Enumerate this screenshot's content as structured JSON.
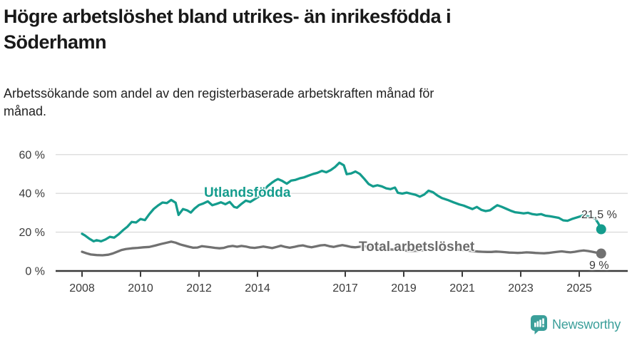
{
  "header": {
    "title": "Högre arbetslöshet bland utrikes- än inrikesfödda i Söderhamn",
    "subtitle": "Arbetssökande som andel av den registerbaserade arbetskraften månad för månad."
  },
  "chart_data": {
    "type": "line",
    "title": "Högre arbetslöshet bland utrikes- än inrikesfödda i Söderhamn",
    "grid": true,
    "legend_position": "inline-on-plot",
    "x_axis": {
      "ticks": [
        2008,
        2010,
        2012,
        2014,
        2017,
        2019,
        2021,
        2023,
        2025
      ],
      "tick_labels": [
        "2008",
        "2010",
        "2012",
        "2014",
        "2017",
        "2019",
        "2021",
        "2023",
        "2025"
      ],
      "range": [
        2007.1,
        2026.7
      ]
    },
    "y_axis": {
      "unit": "%",
      "ticks": [
        0,
        20,
        40,
        60
      ],
      "tick_labels": [
        "0 %",
        "20 %",
        "40 %",
        "60 %"
      ],
      "range": [
        0,
        60
      ]
    },
    "series": [
      {
        "name": "Utlandsfödda",
        "color": "#149c8d",
        "label_color": "#149c8d",
        "end_label": "21,5 %",
        "end_value": 21.5,
        "points": [
          [
            2008.0,
            19.2
          ],
          [
            2008.1,
            18.3
          ],
          [
            2008.25,
            16.6
          ],
          [
            2008.4,
            15.3
          ],
          [
            2008.5,
            15.9
          ],
          [
            2008.65,
            15.3
          ],
          [
            2008.8,
            16.2
          ],
          [
            2008.95,
            17.6
          ],
          [
            2009.1,
            17.2
          ],
          [
            2009.25,
            18.9
          ],
          [
            2009.4,
            21.0
          ],
          [
            2009.55,
            22.8
          ],
          [
            2009.7,
            25.3
          ],
          [
            2009.85,
            25.0
          ],
          [
            2010.0,
            26.8
          ],
          [
            2010.15,
            26.2
          ],
          [
            2010.3,
            29.3
          ],
          [
            2010.45,
            32.0
          ],
          [
            2010.6,
            33.8
          ],
          [
            2010.75,
            35.3
          ],
          [
            2010.9,
            35.0
          ],
          [
            2011.05,
            36.6
          ],
          [
            2011.2,
            35.2
          ],
          [
            2011.3,
            28.9
          ],
          [
            2011.45,
            31.9
          ],
          [
            2011.6,
            31.2
          ],
          [
            2011.72,
            30.1
          ],
          [
            2011.85,
            32.2
          ],
          [
            2012.0,
            34.0
          ],
          [
            2012.15,
            34.8
          ],
          [
            2012.3,
            35.9
          ],
          [
            2012.45,
            33.9
          ],
          [
            2012.6,
            34.6
          ],
          [
            2012.75,
            35.4
          ],
          [
            2012.9,
            34.4
          ],
          [
            2013.05,
            35.6
          ],
          [
            2013.2,
            33.0
          ],
          [
            2013.3,
            32.6
          ],
          [
            2013.45,
            34.6
          ],
          [
            2013.6,
            36.3
          ],
          [
            2013.75,
            35.6
          ],
          [
            2013.9,
            37.0
          ],
          [
            2014.05,
            38.4
          ],
          [
            2014.2,
            41.2
          ],
          [
            2014.35,
            43.8
          ],
          [
            2014.5,
            45.6
          ],
          [
            2014.6,
            46.6
          ],
          [
            2014.7,
            47.4
          ],
          [
            2014.85,
            46.4
          ],
          [
            2015.0,
            45.0
          ],
          [
            2015.15,
            46.6
          ],
          [
            2015.3,
            47.0
          ],
          [
            2015.45,
            47.8
          ],
          [
            2015.6,
            48.3
          ],
          [
            2015.75,
            49.2
          ],
          [
            2015.9,
            50.0
          ],
          [
            2016.05,
            50.6
          ],
          [
            2016.2,
            51.6
          ],
          [
            2016.35,
            50.9
          ],
          [
            2016.5,
            52.0
          ],
          [
            2016.65,
            53.6
          ],
          [
            2016.8,
            55.8
          ],
          [
            2016.95,
            54.5
          ],
          [
            2017.05,
            49.9
          ],
          [
            2017.2,
            50.3
          ],
          [
            2017.35,
            51.3
          ],
          [
            2017.5,
            50.0
          ],
          [
            2017.65,
            47.5
          ],
          [
            2017.8,
            44.8
          ],
          [
            2017.95,
            43.6
          ],
          [
            2018.1,
            44.2
          ],
          [
            2018.25,
            43.6
          ],
          [
            2018.4,
            42.6
          ],
          [
            2018.55,
            42.2
          ],
          [
            2018.7,
            43.0
          ],
          [
            2018.8,
            40.3
          ],
          [
            2018.95,
            39.9
          ],
          [
            2019.1,
            40.4
          ],
          [
            2019.25,
            39.8
          ],
          [
            2019.4,
            39.3
          ],
          [
            2019.55,
            38.3
          ],
          [
            2019.7,
            39.4
          ],
          [
            2019.85,
            41.4
          ],
          [
            2020.0,
            40.6
          ],
          [
            2020.15,
            38.9
          ],
          [
            2020.3,
            37.6
          ],
          [
            2020.5,
            36.6
          ],
          [
            2020.7,
            35.4
          ],
          [
            2020.9,
            34.3
          ],
          [
            2021.05,
            33.7
          ],
          [
            2021.2,
            32.8
          ],
          [
            2021.35,
            31.9
          ],
          [
            2021.5,
            33.0
          ],
          [
            2021.65,
            31.5
          ],
          [
            2021.8,
            30.9
          ],
          [
            2021.95,
            31.3
          ],
          [
            2022.1,
            32.9
          ],
          [
            2022.2,
            33.9
          ],
          [
            2022.35,
            33.1
          ],
          [
            2022.5,
            32.1
          ],
          [
            2022.65,
            31.1
          ],
          [
            2022.8,
            30.3
          ],
          [
            2022.95,
            30.0
          ],
          [
            2023.1,
            29.7
          ],
          [
            2023.25,
            30.0
          ],
          [
            2023.4,
            29.3
          ],
          [
            2023.55,
            29.0
          ],
          [
            2023.7,
            29.3
          ],
          [
            2023.85,
            28.5
          ],
          [
            2024.0,
            28.2
          ],
          [
            2024.15,
            27.8
          ],
          [
            2024.3,
            27.4
          ],
          [
            2024.45,
            26.1
          ],
          [
            2024.6,
            25.9
          ],
          [
            2024.75,
            26.8
          ],
          [
            2024.9,
            27.5
          ],
          [
            2025.05,
            28.2
          ],
          [
            2025.15,
            28.9
          ],
          [
            2025.3,
            28.2
          ],
          [
            2025.45,
            27.6
          ],
          [
            2025.55,
            26.9
          ],
          [
            2025.65,
            24.6
          ],
          [
            2025.75,
            21.5
          ]
        ]
      },
      {
        "name": "Total arbetslöshet",
        "color": "#717171",
        "label_color": "#6b6b6b",
        "end_label": "9 %",
        "end_value": 9,
        "points": [
          [
            2008.0,
            9.9
          ],
          [
            2008.15,
            9.1
          ],
          [
            2008.3,
            8.5
          ],
          [
            2008.5,
            8.2
          ],
          [
            2008.7,
            8.1
          ],
          [
            2008.9,
            8.4
          ],
          [
            2009.05,
            9.0
          ],
          [
            2009.2,
            9.9
          ],
          [
            2009.35,
            10.8
          ],
          [
            2009.5,
            11.3
          ],
          [
            2009.7,
            11.7
          ],
          [
            2009.9,
            11.9
          ],
          [
            2010.1,
            12.2
          ],
          [
            2010.3,
            12.4
          ],
          [
            2010.5,
            13.1
          ],
          [
            2010.7,
            13.9
          ],
          [
            2010.9,
            14.6
          ],
          [
            2011.05,
            15.1
          ],
          [
            2011.2,
            14.6
          ],
          [
            2011.35,
            13.7
          ],
          [
            2011.5,
            13.1
          ],
          [
            2011.65,
            12.5
          ],
          [
            2011.8,
            12.0
          ],
          [
            2011.95,
            12.1
          ],
          [
            2012.1,
            12.8
          ],
          [
            2012.25,
            12.5
          ],
          [
            2012.4,
            12.2
          ],
          [
            2012.55,
            11.9
          ],
          [
            2012.7,
            11.7
          ],
          [
            2012.85,
            11.9
          ],
          [
            2013.0,
            12.6
          ],
          [
            2013.15,
            12.9
          ],
          [
            2013.3,
            12.5
          ],
          [
            2013.45,
            12.9
          ],
          [
            2013.6,
            12.6
          ],
          [
            2013.75,
            12.1
          ],
          [
            2013.9,
            11.9
          ],
          [
            2014.05,
            12.2
          ],
          [
            2014.2,
            12.6
          ],
          [
            2014.35,
            12.2
          ],
          [
            2014.5,
            11.8
          ],
          [
            2014.65,
            12.4
          ],
          [
            2014.8,
            13.0
          ],
          [
            2014.95,
            12.4
          ],
          [
            2015.1,
            12.0
          ],
          [
            2015.25,
            12.4
          ],
          [
            2015.4,
            12.9
          ],
          [
            2015.55,
            13.2
          ],
          [
            2015.7,
            12.6
          ],
          [
            2015.85,
            12.2
          ],
          [
            2016.0,
            12.7
          ],
          [
            2016.15,
            13.2
          ],
          [
            2016.3,
            13.4
          ],
          [
            2016.45,
            12.8
          ],
          [
            2016.6,
            12.4
          ],
          [
            2016.75,
            12.9
          ],
          [
            2016.9,
            13.3
          ],
          [
            2017.05,
            12.9
          ],
          [
            2017.2,
            12.4
          ],
          [
            2017.35,
            12.2
          ],
          [
            2017.5,
            12.5
          ],
          [
            2017.65,
            12.8
          ],
          [
            2017.8,
            12.4
          ],
          [
            2017.95,
            12.0
          ],
          [
            2018.1,
            11.8
          ],
          [
            2018.25,
            11.5
          ],
          [
            2018.4,
            11.3
          ],
          [
            2018.55,
            11.1
          ],
          [
            2018.7,
            11.0
          ],
          [
            2018.85,
            10.8
          ],
          [
            2019.0,
            10.6
          ],
          [
            2019.15,
            10.4
          ],
          [
            2019.3,
            10.3
          ],
          [
            2019.45,
            10.4
          ],
          [
            2019.6,
            10.6
          ],
          [
            2019.75,
            10.8
          ],
          [
            2019.9,
            11.0
          ],
          [
            2020.05,
            11.4
          ],
          [
            2020.2,
            11.9
          ],
          [
            2020.35,
            11.7
          ],
          [
            2020.5,
            11.5
          ],
          [
            2020.65,
            11.3
          ],
          [
            2020.8,
            11.1
          ],
          [
            2020.95,
            10.9
          ],
          [
            2021.1,
            10.7
          ],
          [
            2021.25,
            10.4
          ],
          [
            2021.4,
            10.2
          ],
          [
            2021.55,
            10.0
          ],
          [
            2021.7,
            9.9
          ],
          [
            2021.85,
            9.8
          ],
          [
            2022.0,
            9.8
          ],
          [
            2022.15,
            10.0
          ],
          [
            2022.3,
            9.9
          ],
          [
            2022.45,
            9.7
          ],
          [
            2022.6,
            9.5
          ],
          [
            2022.75,
            9.4
          ],
          [
            2022.9,
            9.3
          ],
          [
            2023.05,
            9.4
          ],
          [
            2023.2,
            9.6
          ],
          [
            2023.35,
            9.5
          ],
          [
            2023.5,
            9.3
          ],
          [
            2023.65,
            9.2
          ],
          [
            2023.8,
            9.1
          ],
          [
            2023.95,
            9.3
          ],
          [
            2024.1,
            9.6
          ],
          [
            2024.25,
            9.9
          ],
          [
            2024.4,
            10.1
          ],
          [
            2024.55,
            9.8
          ],
          [
            2024.7,
            9.6
          ],
          [
            2024.85,
            9.9
          ],
          [
            2025.0,
            10.3
          ],
          [
            2025.15,
            10.6
          ],
          [
            2025.3,
            10.3
          ],
          [
            2025.45,
            9.9
          ],
          [
            2025.6,
            9.4
          ],
          [
            2025.75,
            9.0
          ]
        ]
      }
    ],
    "colors": {
      "grid": "#dcdcdc",
      "axis": "#3a3a3a",
      "tick_text": "#3a3a3a"
    }
  },
  "footer": {
    "brand": "Newsworthy",
    "brand_color": "#3b9f9a"
  }
}
